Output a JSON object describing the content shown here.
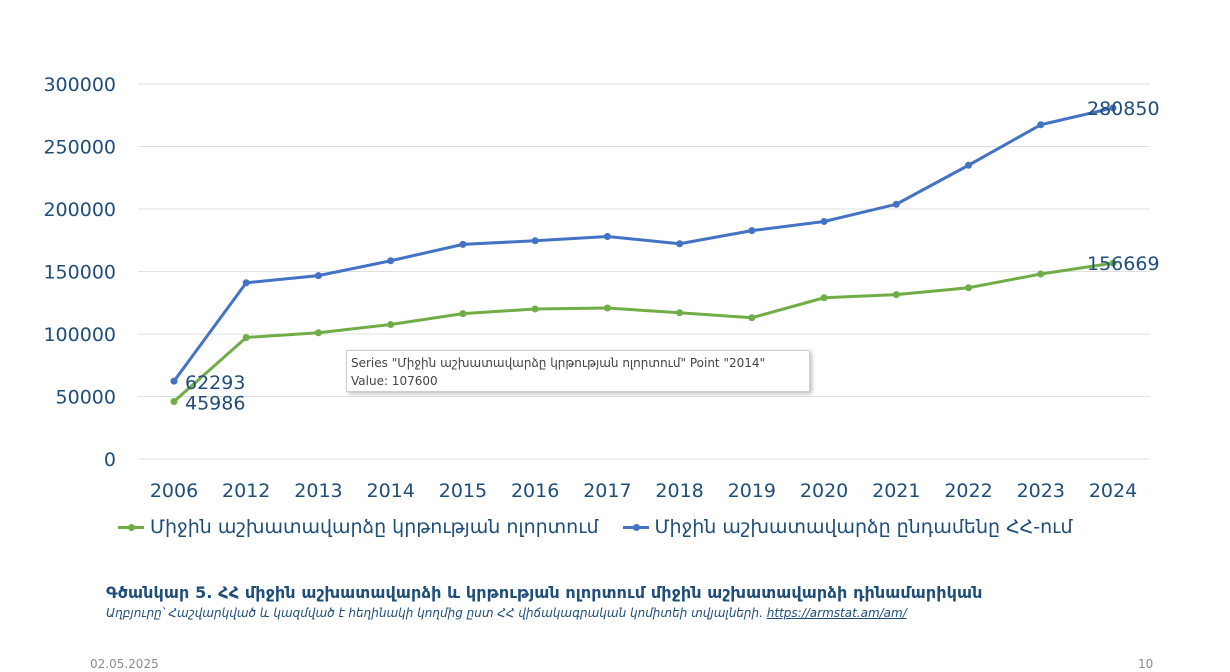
{
  "chart_data": {
    "type": "line",
    "categories": [
      "2006",
      "2012",
      "2013",
      "2014",
      "2015",
      "2016",
      "2017",
      "2018",
      "2019",
      "2020",
      "2021",
      "2022",
      "2023",
      "2024"
    ],
    "series": [
      {
        "name": "Միջին աշխատավարձը կրթության ոլորտում",
        "color": "#70ad47",
        "values": [
          45986,
          97200,
          101000,
          107600,
          116300,
          120000,
          120800,
          117000,
          113000,
          129000,
          131500,
          137000,
          148000,
          156669
        ]
      },
      {
        "name": "Միջին աշխատավարձը ընդամենը ՀՀ-ում",
        "color": "#4472c4",
        "values": [
          62293,
          141000,
          146700,
          158600,
          171700,
          174600,
          178000,
          172200,
          182700,
          190000,
          203800,
          235000,
          267400,
          280850
        ]
      }
    ],
    "data_labels": [
      {
        "series": 1,
        "index": 0,
        "text": "62293"
      },
      {
        "series": 0,
        "index": 0,
        "text": "45986"
      },
      {
        "series": 1,
        "index": 13,
        "text": "280850"
      },
      {
        "series": 0,
        "index": 13,
        "text": "156669"
      }
    ],
    "ylim": [
      0,
      300000
    ],
    "yticks": [
      "0",
      "50000",
      "100000",
      "150000",
      "200000",
      "250000",
      "300000"
    ],
    "grid": true,
    "legend": "bottom"
  },
  "tooltip": {
    "line1": "Series \"Միջին աշխատավարձը կրթության ոլորտում\" Point \"2014\"",
    "line2": "Value: 107600"
  },
  "caption": {
    "title": "Գծանկար 5. ՀՀ միջին աշխատավարձի և կրթության ոլորտում միջին աշխատավարձի դինամարիկան",
    "source": "Աղբյուրը՝ Հաշվարկված և կազմված է հեղինակի կողմից ըստ ՀՀ վիճակագրական կոմիտեի տվյալների.",
    "link": "https://armstat.am/am/"
  },
  "footer": {
    "date": "02.05.2025",
    "page": "10"
  }
}
